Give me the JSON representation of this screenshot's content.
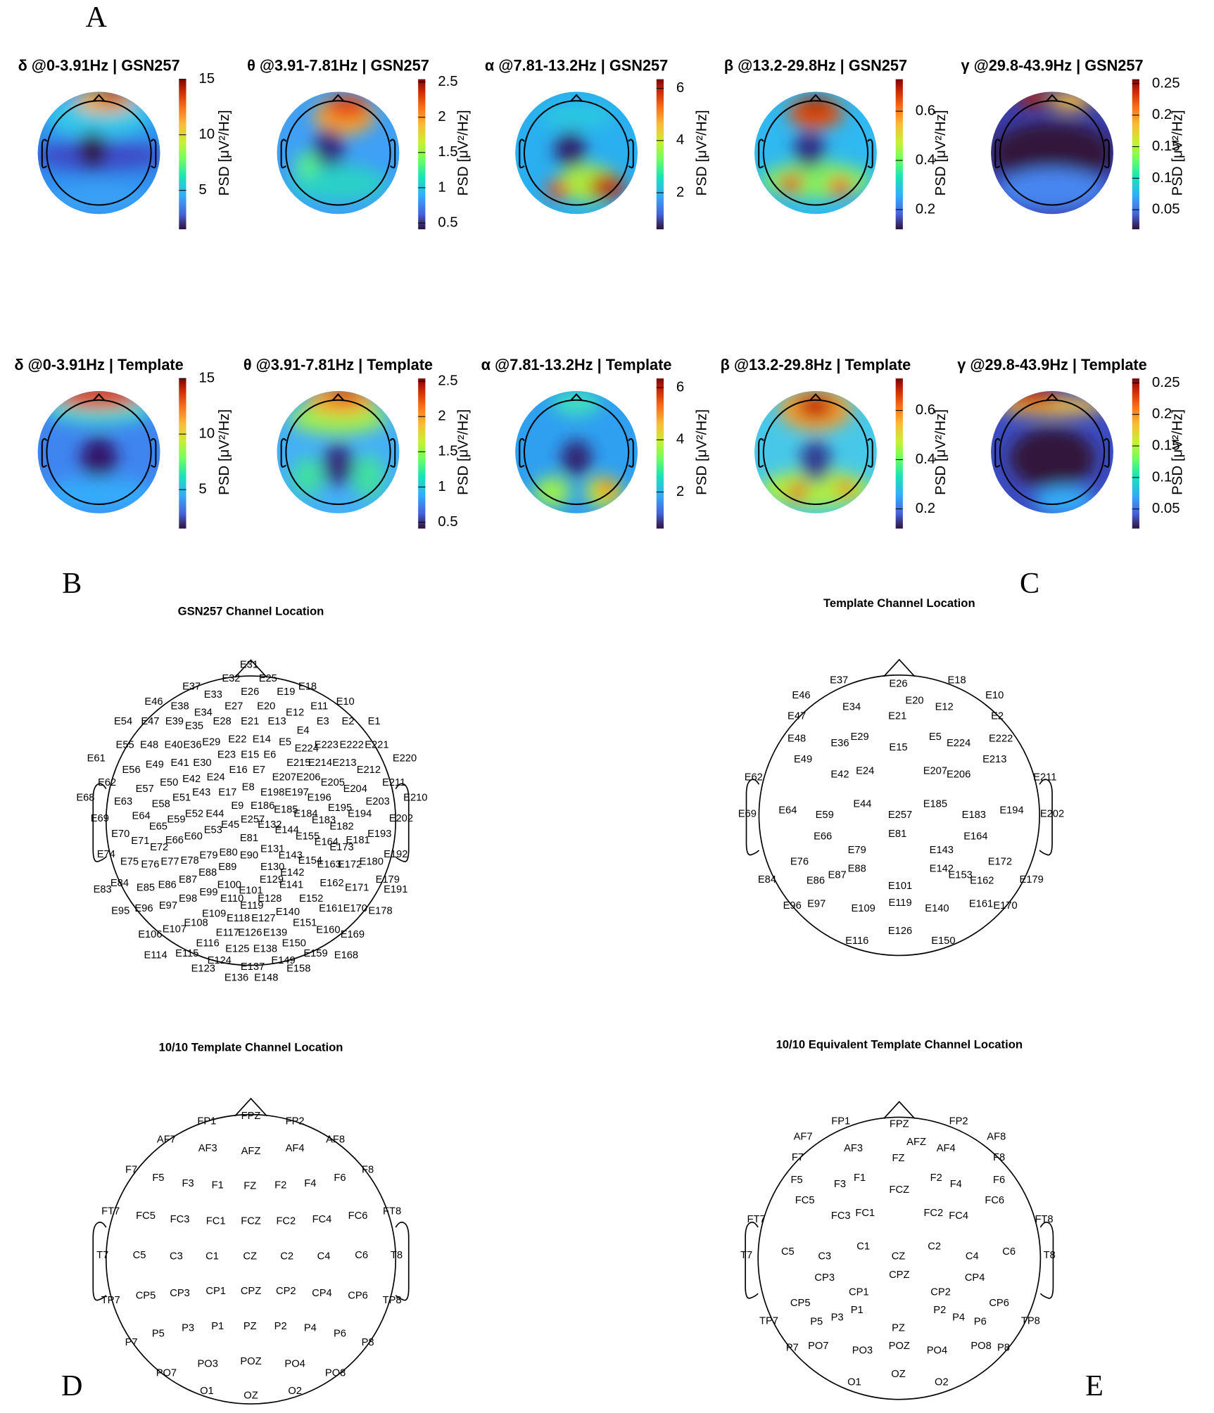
{
  "letters": {
    "A": "A",
    "B": "B",
    "C": "C",
    "D": "D",
    "E": "E"
  },
  "topomaps": [
    {
      "title": "δ @0-3.91Hz | GSN257",
      "colorbar": {
        "label": "PSD [μV²/Hz]",
        "ylim": [
          1.5,
          15
        ],
        "yticks": [
          5,
          10,
          15
        ]
      }
    },
    {
      "title": "θ @3.91-7.81Hz | GSN257",
      "colorbar": {
        "label": "PSD [μV²/Hz]",
        "ylim": [
          0.41,
          2.54
        ],
        "yticks": [
          0.5,
          1,
          1.5,
          2,
          2.5
        ]
      }
    },
    {
      "title": "α @7.81-13.2Hz | GSN257",
      "colorbar": {
        "label": "PSD [μV²/Hz]",
        "ylim": [
          0.6,
          6.35
        ],
        "yticks": [
          2,
          4,
          6
        ]
      }
    },
    {
      "title": "β @13.2-29.8Hz | GSN257",
      "colorbar": {
        "label": "PSD [μV²/Hz]",
        "ylim": [
          0.12,
          0.73
        ],
        "yticks": [
          0.2,
          0.4,
          0.6
        ]
      }
    },
    {
      "title": "γ @29.8-43.9Hz | GSN257",
      "colorbar": {
        "label": "PSD [μV²/Hz]",
        "ylim": [
          0.019,
          0.257
        ],
        "yticks": [
          0.05,
          0.1,
          0.15,
          0.2,
          0.25
        ]
      }
    },
    {
      "title": "δ @0-3.91Hz | Template",
      "colorbar": {
        "label": "PSD [μV²/Hz]",
        "ylim": [
          1.5,
          15
        ],
        "yticks": [
          5,
          10,
          15
        ]
      }
    },
    {
      "title": "θ @3.91-7.81Hz | Template",
      "colorbar": {
        "label": "PSD [μV²/Hz]",
        "ylim": [
          0.41,
          2.54
        ],
        "yticks": [
          0.5,
          1,
          1.5,
          2,
          2.5
        ]
      }
    },
    {
      "title": "α @7.81-13.2Hz | Template",
      "colorbar": {
        "label": "PSD [μV²/Hz]",
        "ylim": [
          0.6,
          6.35
        ],
        "yticks": [
          2,
          4,
          6
        ]
      }
    },
    {
      "title": "β @13.2-29.8Hz | Template",
      "colorbar": {
        "label": "PSD [μV²/Hz]",
        "ylim": [
          0.12,
          0.73
        ],
        "yticks": [
          0.2,
          0.4,
          0.6
        ]
      }
    },
    {
      "title": "γ @29.8-43.9Hz | Template",
      "colorbar": {
        "label": "PSD [μV²/Hz]",
        "ylim": [
          0.019,
          0.257
        ],
        "yticks": [
          0.05,
          0.1,
          0.15,
          0.2,
          0.25
        ]
      }
    }
  ],
  "channel_maps": [
    {
      "title": "GSN257 Channel Location",
      "channels": [
        "E31",
        "E32",
        "E25",
        "E37",
        "E18",
        "E26",
        "E19",
        "E33",
        "E46",
        "E10",
        "E38",
        "E27",
        "E20",
        "E11",
        "E34",
        "E12",
        "E54",
        "E47",
        "E39",
        "E28",
        "E21",
        "E13",
        "E3",
        "E2",
        "E1",
        "E35",
        "E4",
        "E22",
        "E14",
        "E29",
        "E5",
        "E55",
        "E48",
        "E40",
        "E36",
        "E223",
        "E222",
        "E221",
        "E224",
        "E23",
        "E15",
        "E6",
        "E61",
        "E220",
        "E41",
        "E30",
        "E215",
        "E214",
        "E213",
        "E49",
        "E56",
        "E16",
        "E7",
        "E212",
        "E24",
        "E207",
        "E206",
        "E42",
        "E62",
        "E50",
        "E205",
        "E211",
        "E8",
        "E57",
        "E204",
        "E43",
        "E17",
        "E198",
        "E197",
        "E68",
        "E51",
        "E196",
        "E210",
        "E63",
        "E203",
        "E58",
        "E9",
        "E186",
        "E195",
        "E185",
        "E52",
        "E44",
        "E184",
        "E194",
        "E64",
        "E69",
        "E202",
        "E59",
        "E257",
        "E183",
        "E45",
        "E132",
        "E65",
        "E182",
        "E53",
        "E144",
        "E70",
        "E193",
        "E60",
        "E155",
        "E81",
        "E66",
        "E181",
        "E71",
        "E164",
        "E72",
        "E173",
        "E131",
        "E80",
        "E74",
        "E192",
        "E143",
        "E79",
        "E90",
        "E154",
        "E78",
        "E75",
        "E77",
        "E180",
        "E76",
        "E163",
        "E172",
        "E89",
        "E130",
        "E88",
        "E142",
        "E87",
        "E129",
        "E179",
        "E84",
        "E162",
        "E86",
        "E100",
        "E141",
        "E85",
        "E171",
        "E83",
        "E191",
        "E101",
        "E99",
        "E98",
        "E110",
        "E128",
        "E152",
        "E97",
        "E119",
        "E96",
        "E161",
        "E170",
        "E95",
        "E178",
        "E140",
        "E109",
        "E118",
        "E127",
        "E108",
        "E151",
        "E107",
        "E160",
        "E117",
        "E126",
        "E139",
        "E106",
        "E169",
        "E116",
        "E150",
        "E125",
        "E138",
        "E115",
        "E159",
        "E114",
        "E168",
        "E124",
        "E149",
        "E137",
        "E123",
        "E158",
        "E136",
        "E148"
      ]
    },
    {
      "title": "Template Channel Location",
      "channels": [
        "E37",
        "E26",
        "E18",
        "E20",
        "E12",
        "E46",
        "E10",
        "E34",
        "E21",
        "E47",
        "E2",
        "E29",
        "E5",
        "E224",
        "E222",
        "E48",
        "E36",
        "E15",
        "E49",
        "E213",
        "E24",
        "E42",
        "E207",
        "E206",
        "E62",
        "E211",
        "E44",
        "E185",
        "E194",
        "E64",
        "E69",
        "E202",
        "E59",
        "E257",
        "E183",
        "E81",
        "E164",
        "E66",
        "E79",
        "E143",
        "E76",
        "E172",
        "E88",
        "E142",
        "E153",
        "E162",
        "E87",
        "E86",
        "E84",
        "E179",
        "E101",
        "E119",
        "E97",
        "E96",
        "E161",
        "E170",
        "E109",
        "E140",
        "E126",
        "E116",
        "E150"
      ]
    },
    {
      "title": "10/10 Template Channel Location",
      "channels": [
        "FP1",
        "FPZ",
        "FP2",
        "AF7",
        "AF8",
        "AF3",
        "AFZ",
        "AF4",
        "F7",
        "F8",
        "F5",
        "F6",
        "F3",
        "F1",
        "FZ",
        "F2",
        "F4",
        "FT7",
        "FT8",
        "FC5",
        "FC3",
        "FC1",
        "FCZ",
        "FC2",
        "FC4",
        "FC6",
        "T7",
        "C5",
        "C3",
        "C1",
        "CZ",
        "C2",
        "C4",
        "C6",
        "T8",
        "TP7",
        "TP8",
        "CP5",
        "CP3",
        "CP1",
        "CPZ",
        "CP2",
        "CP4",
        "CP6",
        "P5",
        "P3",
        "P1",
        "PZ",
        "P2",
        "P4",
        "P6",
        "P7",
        "P8",
        "PO7",
        "PO3",
        "POZ",
        "PO4",
        "PO8",
        "O1",
        "OZ",
        "O2"
      ]
    },
    {
      "title": "10/10 Equivalent Template Channel Location",
      "channels": [
        "FP1",
        "FPZ",
        "FP2",
        "AF7",
        "AF8",
        "AFZ",
        "AF3",
        "AF4",
        "F7",
        "F8",
        "FZ",
        "F5",
        "F1",
        "F3",
        "F2",
        "F4",
        "F6",
        "FCZ",
        "FC5",
        "FC6",
        "FC3",
        "FC1",
        "FC2",
        "FC4",
        "FT7",
        "FT8",
        "C1",
        "C2",
        "C5",
        "C6",
        "T7",
        "T8",
        "C3",
        "CZ",
        "C4",
        "CPZ",
        "CP3",
        "CP4",
        "CP1",
        "CP2",
        "CP5",
        "CP6",
        "P1",
        "P2",
        "P3",
        "P4",
        "P5",
        "P6",
        "TP7",
        "TP8",
        "PZ",
        "P7",
        "P8",
        "PO7",
        "PO3",
        "POZ",
        "PO4",
        "PO8",
        "OZ",
        "O1",
        "O2"
      ]
    }
  ]
}
